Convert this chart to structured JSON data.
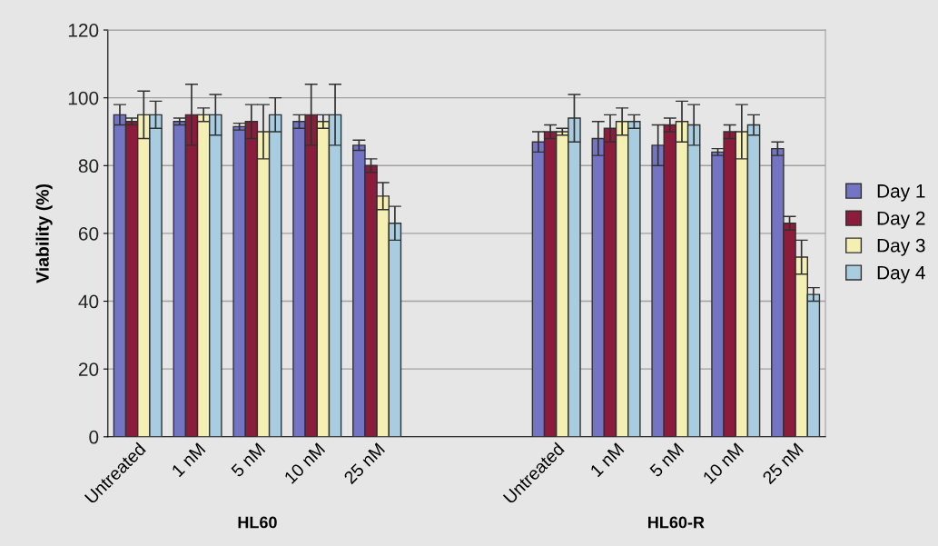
{
  "chart_data": {
    "type": "bar",
    "ylabel": "Viability (%)",
    "categories": [
      "Untreated",
      "1 nM",
      "5 nM",
      "10 nM",
      "25 nM",
      null,
      null,
      "Untreated",
      "1 nM",
      "5 nM",
      "10 nM",
      "25 nM"
    ],
    "series": [
      {
        "name": "Day 1",
        "color": "#7474c4",
        "values": [
          95,
          93,
          91.5,
          93,
          86,
          null,
          null,
          87,
          88,
          86,
          84,
          85
        ],
        "errors": [
          3,
          1,
          1,
          2,
          1.5,
          null,
          null,
          3,
          5,
          6,
          1,
          2
        ]
      },
      {
        "name": "Day 2",
        "color": "#8b1c3c",
        "values": [
          93,
          95,
          93,
          95,
          80,
          null,
          null,
          90,
          91,
          92,
          90,
          63
        ],
        "errors": [
          1,
          9,
          5,
          9,
          2,
          null,
          null,
          2,
          4,
          2,
          2,
          2
        ]
      },
      {
        "name": "Day 3",
        "color": "#f4f0b4",
        "values": [
          95,
          95,
          90,
          93,
          71,
          null,
          null,
          90,
          93,
          93,
          90,
          53
        ],
        "errors": [
          7,
          2,
          8,
          2,
          4,
          null,
          null,
          1,
          4,
          6,
          8,
          5
        ]
      },
      {
        "name": "Day 4",
        "color": "#a8cce0",
        "values": [
          95,
          95,
          95,
          95,
          63,
          null,
          null,
          94,
          93,
          92,
          92,
          42
        ],
        "errors": [
          4,
          6,
          5,
          9,
          5,
          null,
          null,
          7,
          2,
          6,
          3,
          2
        ]
      }
    ],
    "ylim": [
      0,
      120
    ],
    "yticks": [
      0,
      20,
      40,
      60,
      80,
      100,
      120
    ],
    "grid": "y",
    "legend": "right",
    "annotations": [
      "HL60",
      "HL60-R"
    ]
  }
}
